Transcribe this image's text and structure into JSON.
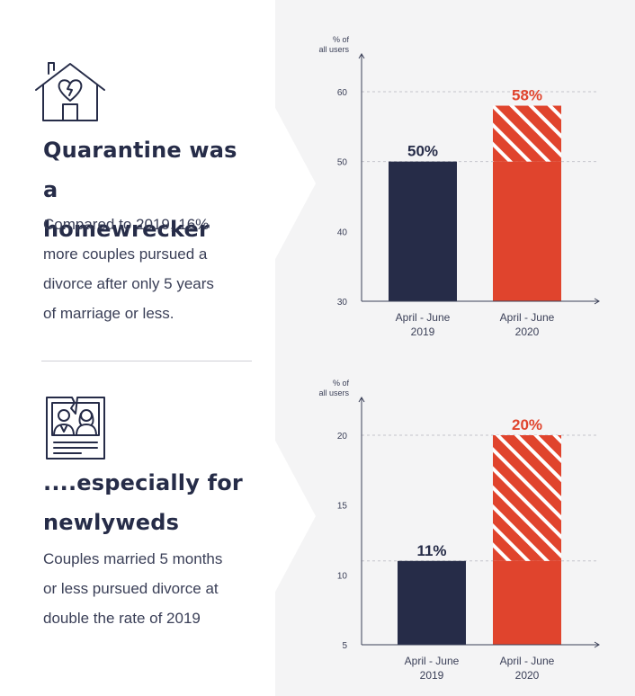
{
  "sections": [
    {
      "icon": "broken-heart-house-icon",
      "headline_lines": [
        "Quarantine was a",
        "homewrecker"
      ],
      "body_lines": [
        "Compared to 2019, 16%",
        "more couples pursued a",
        "divorce after only 5 years",
        "of marriage or less."
      ]
    },
    {
      "icon": "torn-wedding-photo-icon",
      "headline_lines": [
        "....especially for",
        "newlyweds"
      ],
      "body_lines": [
        "Couples married 5 months",
        "or less pursued divorce at",
        "double the rate of 2019"
      ]
    }
  ],
  "colors": {
    "navy": "#262c48",
    "red": "#e0442d",
    "panel": "#f4f4f5",
    "axis": "#3a3f57",
    "grid": "#c4c5cc"
  },
  "chart_data": [
    {
      "type": "bar",
      "ylabel_lines": [
        "% of",
        "all users"
      ],
      "ylim": [
        30,
        60
      ],
      "yticks": [
        30,
        40,
        50,
        60
      ],
      "categories": [
        [
          "April - June",
          "2019"
        ],
        [
          "April - June",
          "2020"
        ]
      ],
      "values": [
        50,
        58
      ],
      "data_labels": [
        "50%",
        "58%"
      ],
      "bar_colors": [
        "navy",
        "red"
      ],
      "hatched": [
        false,
        true
      ],
      "hatch_from": 50,
      "grid_at": [
        50,
        60
      ],
      "grid": "dashed"
    },
    {
      "type": "bar",
      "ylabel_lines": [
        "% of",
        "all users"
      ],
      "ylim": [
        5,
        20
      ],
      "yticks": [
        5,
        10,
        15,
        20
      ],
      "categories": [
        [
          "April - June",
          "2019"
        ],
        [
          "April - June",
          "2020"
        ]
      ],
      "values": [
        11,
        20
      ],
      "data_labels": [
        "11%",
        "20%"
      ],
      "bar_colors": [
        "navy",
        "red"
      ],
      "hatched": [
        false,
        true
      ],
      "hatch_from": 11,
      "grid_at": [
        11,
        20
      ],
      "grid": "dashed"
    }
  ]
}
